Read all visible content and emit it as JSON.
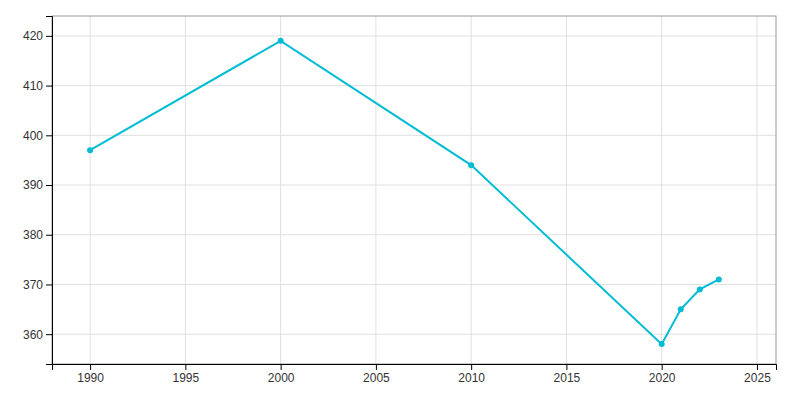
{
  "chart_data": {
    "type": "line",
    "x": [
      1990,
      2000,
      2010,
      2020,
      2021,
      2022,
      2023
    ],
    "values": [
      397,
      419,
      394,
      358,
      365,
      369,
      371
    ],
    "color": "#00BCD4",
    "marker": "circle",
    "xlim": [
      1988,
      2026
    ],
    "ylim": [
      354,
      424
    ],
    "xticks": [
      1990,
      1995,
      2000,
      2005,
      2010,
      2015,
      2020,
      2025
    ],
    "yticks": [
      360,
      370,
      380,
      390,
      400,
      410,
      420
    ],
    "grid": true
  }
}
